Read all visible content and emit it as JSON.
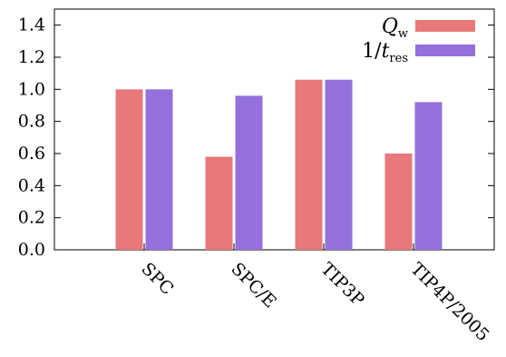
{
  "chart_data": {
    "type": "bar",
    "categories": [
      "SPC",
      "SPC/E",
      "TIP3P",
      "TIP4P/2005"
    ],
    "series": [
      {
        "name": "Q_w",
        "values": [
          1.0,
          0.58,
          1.06,
          0.6
        ],
        "color": "#e8787a"
      },
      {
        "name": "1/t_res",
        "values": [
          1.0,
          0.96,
          1.06,
          0.92
        ],
        "color": "#9370db"
      }
    ],
    "legend": [
      {
        "main": "Q",
        "sub": "w"
      },
      {
        "prefix": "1/",
        "main": "t",
        "sub": "res"
      }
    ],
    "yticks": [
      "0.0",
      "0.2",
      "0.4",
      "0.6",
      "0.8",
      "1.0",
      "1.2",
      "1.4"
    ],
    "ylim": [
      0,
      1.5
    ],
    "title": "",
    "xlabel": "",
    "ylabel": "",
    "grid": false,
    "legend_position": "top-right"
  }
}
